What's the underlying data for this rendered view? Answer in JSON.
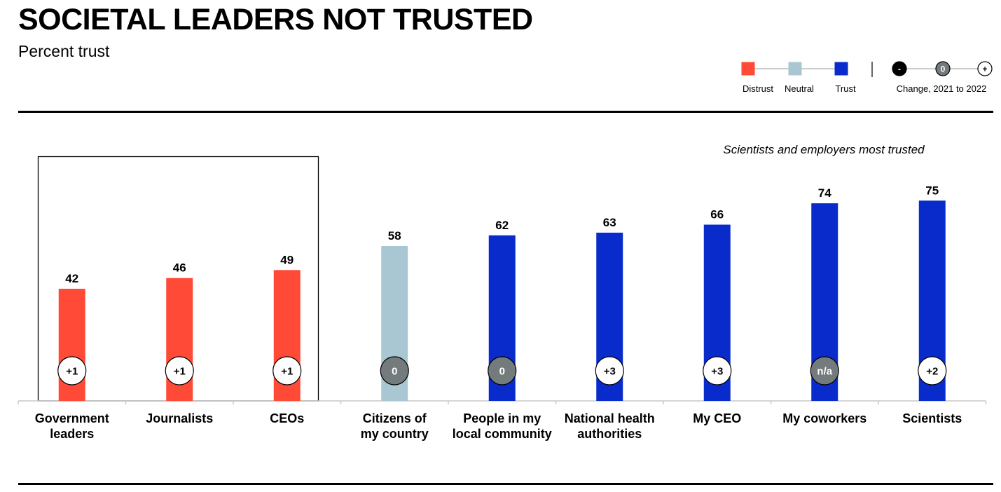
{
  "header": {
    "title": "SOCIETAL LEADERS NOT TRUSTED",
    "subtitle": "Percent trust"
  },
  "legend": {
    "items": [
      {
        "label": "Distrust",
        "color": "#FF4A37"
      },
      {
        "label": "Neutral",
        "color": "#A9C7D3"
      },
      {
        "label": "Trust",
        "color": "#0A2BCB"
      }
    ],
    "change_label": "Change, 2021 to 2022",
    "change_symbols": [
      "-",
      "0",
      "+"
    ]
  },
  "annotation": "Scientists and employers most trusted",
  "chart_data": {
    "type": "bar",
    "title": "SOCIETAL LEADERS NOT TRUSTED",
    "subtitle": "Percent trust",
    "categories": [
      "Government leaders",
      "Journalists",
      "CEOs",
      "Citizens of my country",
      "People in my local community",
      "National health authorities",
      "My CEO",
      "My coworkers",
      "Scientists"
    ],
    "category_lines": [
      [
        "Government",
        "leaders"
      ],
      [
        "Journalists"
      ],
      [
        "CEOs"
      ],
      [
        "Citizens of",
        "my country"
      ],
      [
        "People in my",
        "local community"
      ],
      [
        "National health",
        "authorities"
      ],
      [
        "My CEO"
      ],
      [
        "My coworkers"
      ],
      [
        "Scientists"
      ]
    ],
    "values": [
      42,
      46,
      49,
      58,
      62,
      63,
      66,
      74,
      75
    ],
    "trust_level": [
      "Distrust",
      "Distrust",
      "Distrust",
      "Neutral",
      "Trust",
      "Trust",
      "Trust",
      "Trust",
      "Trust"
    ],
    "change_2021_to_2022": [
      "+1",
      "+1",
      "+1",
      "0",
      "0",
      "+3",
      "+3",
      "n/a",
      "+2"
    ],
    "colors": {
      "Distrust": "#FF4A37",
      "Neutral": "#A9C7D3",
      "Trust": "#0A2BCB",
      "change_zero": "#737B7C",
      "change_positive": "#FFFFFF",
      "change_negative": "#000000"
    },
    "highlighted_group": [
      "Government leaders",
      "Journalists",
      "CEOs"
    ],
    "annotation": "Scientists and employers most trusted",
    "legend_position": "top-right",
    "grid": false
  }
}
